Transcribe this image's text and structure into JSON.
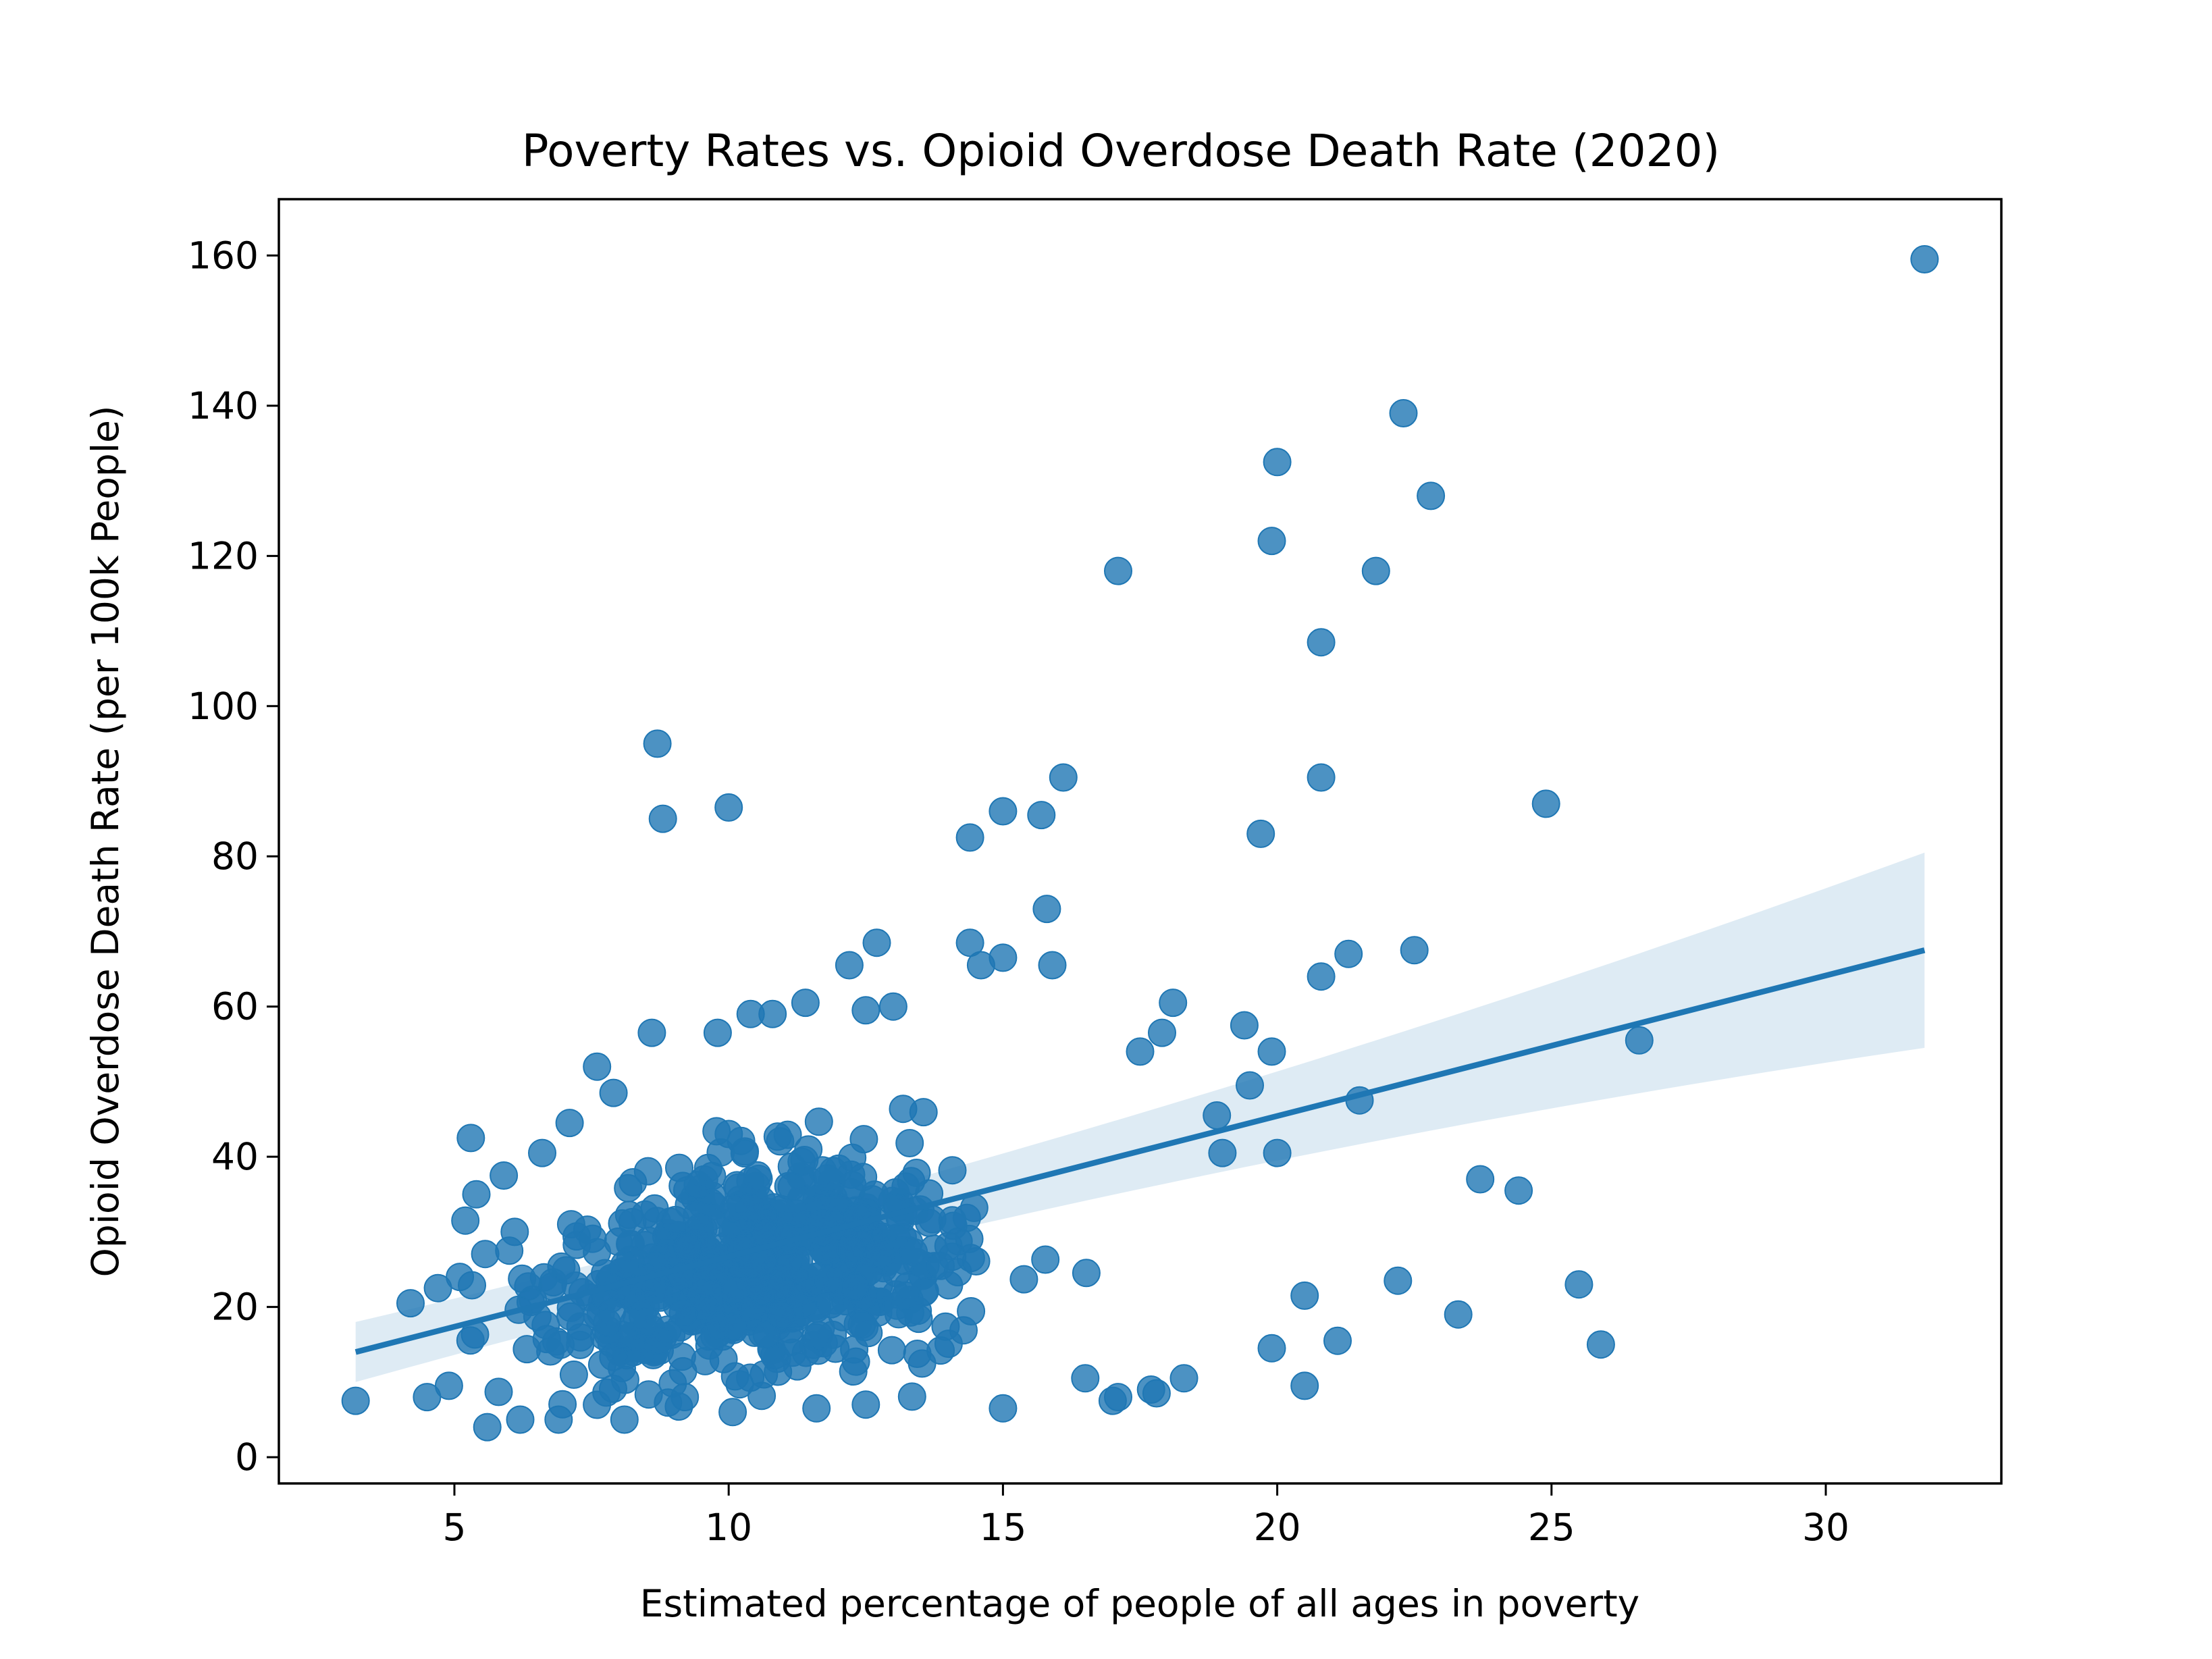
{
  "chart_data": {
    "type": "scatter",
    "title": "Poverty Rates vs. Opioid Overdose Death Rate (2020)",
    "xlabel": "Estimated percentage of people of all ages in poverty",
    "ylabel": "Opioid Overdose Death Rate (per 100k People)",
    "xlim": [
      1.8,
      33.2
    ],
    "ylim": [
      -3.5,
      167.5
    ],
    "xticks": [
      5,
      10,
      15,
      20,
      25,
      30
    ],
    "yticks": [
      0,
      20,
      40,
      60,
      80,
      100,
      120,
      140,
      160
    ],
    "grid": false,
    "colors": {
      "points": "#1f77b4",
      "line": "#1f77b4",
      "band": "#1f77b4"
    },
    "regression": {
      "x": [
        3.2,
        31.8
      ],
      "y": [
        14.0,
        67.5
      ],
      "ci_lower": [
        10.5,
        54.5
      ],
      "ci_upper": [
        18.5,
        80.5
      ]
    },
    "outliers": {
      "x": [
        31.8,
        22.3,
        20.0,
        22.8,
        19.9,
        17.1,
        21.8,
        20.8,
        8.7,
        10.0,
        8.8,
        16.1,
        20.8,
        24.9,
        15.0,
        15.7,
        14.4,
        19.7,
        15.8,
        12.7,
        14.4,
        21.3,
        22.5,
        15.0,
        12.2,
        20.8,
        14.6,
        15.9,
        11.4,
        13.0,
        18.1,
        12.5,
        10.4,
        10.8,
        26.6,
        8.6,
        19.4,
        9.8,
        17.5,
        17.9,
        19.9,
        21.5,
        19.5,
        18.9,
        20.0,
        23.7,
        24.4,
        19.0,
        22.2,
        25.5,
        20.5,
        23.3,
        21.1,
        19.9,
        25.9,
        20.5,
        18.3,
        17.0,
        17.8,
        5.6,
        6.2,
        8.1,
        3.2,
        4.5,
        5.3,
        15.0,
        17.1,
        17.7,
        16.5,
        12.5,
        11.6,
        9.2,
        6.9,
        5.2,
        7.6,
        4.2,
        4.9,
        5.1,
        4.7,
        5.4,
        6.6,
        5.9,
        6.0,
        6.1,
        7.1,
        7.9
      ],
      "y": [
        159.5,
        139.0,
        132.5,
        128.0,
        122.0,
        118.0,
        118.0,
        108.5,
        95.0,
        86.5,
        85.0,
        90.5,
        90.5,
        87.0,
        86.0,
        85.5,
        82.5,
        83.0,
        73.0,
        68.5,
        68.5,
        67.0,
        67.5,
        66.5,
        65.5,
        64.0,
        65.5,
        65.5,
        60.5,
        60.0,
        60.5,
        59.5,
        59.0,
        59.0,
        55.5,
        56.5,
        57.5,
        56.5,
        54.0,
        56.5,
        54.0,
        47.5,
        49.5,
        45.5,
        40.5,
        37.0,
        35.5,
        40.5,
        23.5,
        23.0,
        21.5,
        19.0,
        15.5,
        14.5,
        15.0,
        9.5,
        10.5,
        7.5,
        8.5,
        4.0,
        5.0,
        5.0,
        7.5,
        8.0,
        42.5,
        6.5,
        8.0,
        9.0,
        10.5,
        7.0,
        6.5,
        8.0,
        5.0,
        31.5,
        52.0,
        20.5,
        9.5,
        24.0,
        22.5,
        35.0,
        40.5,
        37.5,
        27.5,
        30.0,
        44.5,
        48.5
      ]
    },
    "cluster": {
      "x_range": [
        3.8,
        18.7
      ],
      "y_range": [
        6.0,
        55.0
      ],
      "count": 700
    }
  }
}
